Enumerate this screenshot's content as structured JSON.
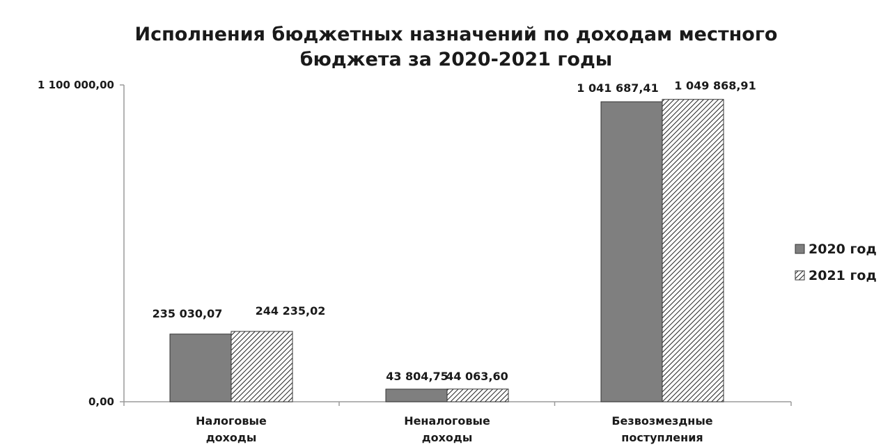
{
  "chart_data": {
    "type": "bar",
    "title_lines": [
      "Исполнения бюджетных назначений по доходам местного",
      "бюджета за 2020-2021 годы"
    ],
    "categories": [
      [
        "Налоговые",
        "доходы"
      ],
      [
        "Неналоговые",
        "доходы"
      ],
      [
        "Безвозмездные",
        "поступления"
      ]
    ],
    "series": [
      {
        "name": "2020 год",
        "values": [
          235030.07,
          43804.75,
          1041687.41
        ],
        "labels": [
          "235 030,07",
          "43 804,75",
          "1 041 687,41"
        ],
        "color": "#7f7f7f",
        "pattern": "solid"
      },
      {
        "name": "2021 год",
        "values": [
          244235.02,
          44063.6,
          1049868.91
        ],
        "labels": [
          "244 235,02",
          "44 063,60",
          "1 049 868,91"
        ],
        "color": "#ffffff",
        "pattern": "hatched"
      }
    ],
    "ylim": [
      0,
      1100000
    ],
    "yticks": [
      {
        "value": 0,
        "label": "0,00"
      },
      {
        "value": 1100000,
        "label": "1 100 000,00"
      }
    ],
    "xlabel": "",
    "ylabel": "",
    "grid": false,
    "legend_position": "right"
  }
}
